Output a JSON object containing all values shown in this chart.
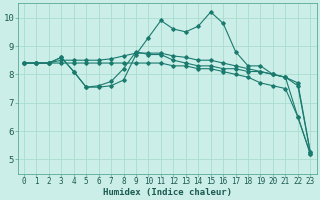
{
  "xlabel": "Humidex (Indice chaleur)",
  "bg_color": "#cceee8",
  "grid_color": "#aaddcc",
  "line_color": "#1a7a6e",
  "x_values": [
    0,
    1,
    2,
    3,
    4,
    5,
    6,
    7,
    8,
    9,
    10,
    11,
    12,
    13,
    14,
    15,
    16,
    17,
    18,
    19,
    20,
    21,
    22,
    23
  ],
  "line1": [
    8.4,
    8.4,
    8.4,
    8.6,
    8.1,
    7.55,
    7.55,
    7.6,
    7.8,
    8.7,
    9.3,
    9.9,
    9.6,
    9.5,
    9.7,
    10.2,
    9.8,
    8.8,
    8.3,
    8.3,
    8.0,
    7.9,
    6.5,
    5.2
  ],
  "line2": [
    8.4,
    8.4,
    8.4,
    8.6,
    8.1,
    7.55,
    7.6,
    7.75,
    8.2,
    8.8,
    8.7,
    8.7,
    8.5,
    8.4,
    8.3,
    8.3,
    8.2,
    8.2,
    8.1,
    8.1,
    8.0,
    7.9,
    7.6,
    5.25
  ],
  "line3": [
    8.4,
    8.4,
    8.4,
    8.5,
    8.5,
    8.5,
    8.5,
    8.55,
    8.65,
    8.75,
    8.75,
    8.75,
    8.65,
    8.6,
    8.5,
    8.5,
    8.4,
    8.3,
    8.2,
    8.1,
    8.0,
    7.9,
    7.7,
    5.25
  ],
  "line4": [
    8.4,
    8.4,
    8.4,
    8.4,
    8.4,
    8.4,
    8.4,
    8.4,
    8.4,
    8.4,
    8.4,
    8.4,
    8.3,
    8.3,
    8.2,
    8.2,
    8.1,
    8.0,
    7.9,
    7.7,
    7.6,
    7.5,
    6.5,
    5.2
  ],
  "ylim": [
    4.5,
    10.5
  ],
  "xlim": [
    -0.5,
    23.5
  ],
  "yticks": [
    5,
    6,
    7,
    8,
    9,
    10
  ],
  "xticks": [
    0,
    1,
    2,
    3,
    4,
    5,
    6,
    7,
    8,
    9,
    10,
    11,
    12,
    13,
    14,
    15,
    16,
    17,
    18,
    19,
    20,
    21,
    22,
    23
  ],
  "tick_fontsize": 5.5,
  "xlabel_fontsize": 6.5
}
